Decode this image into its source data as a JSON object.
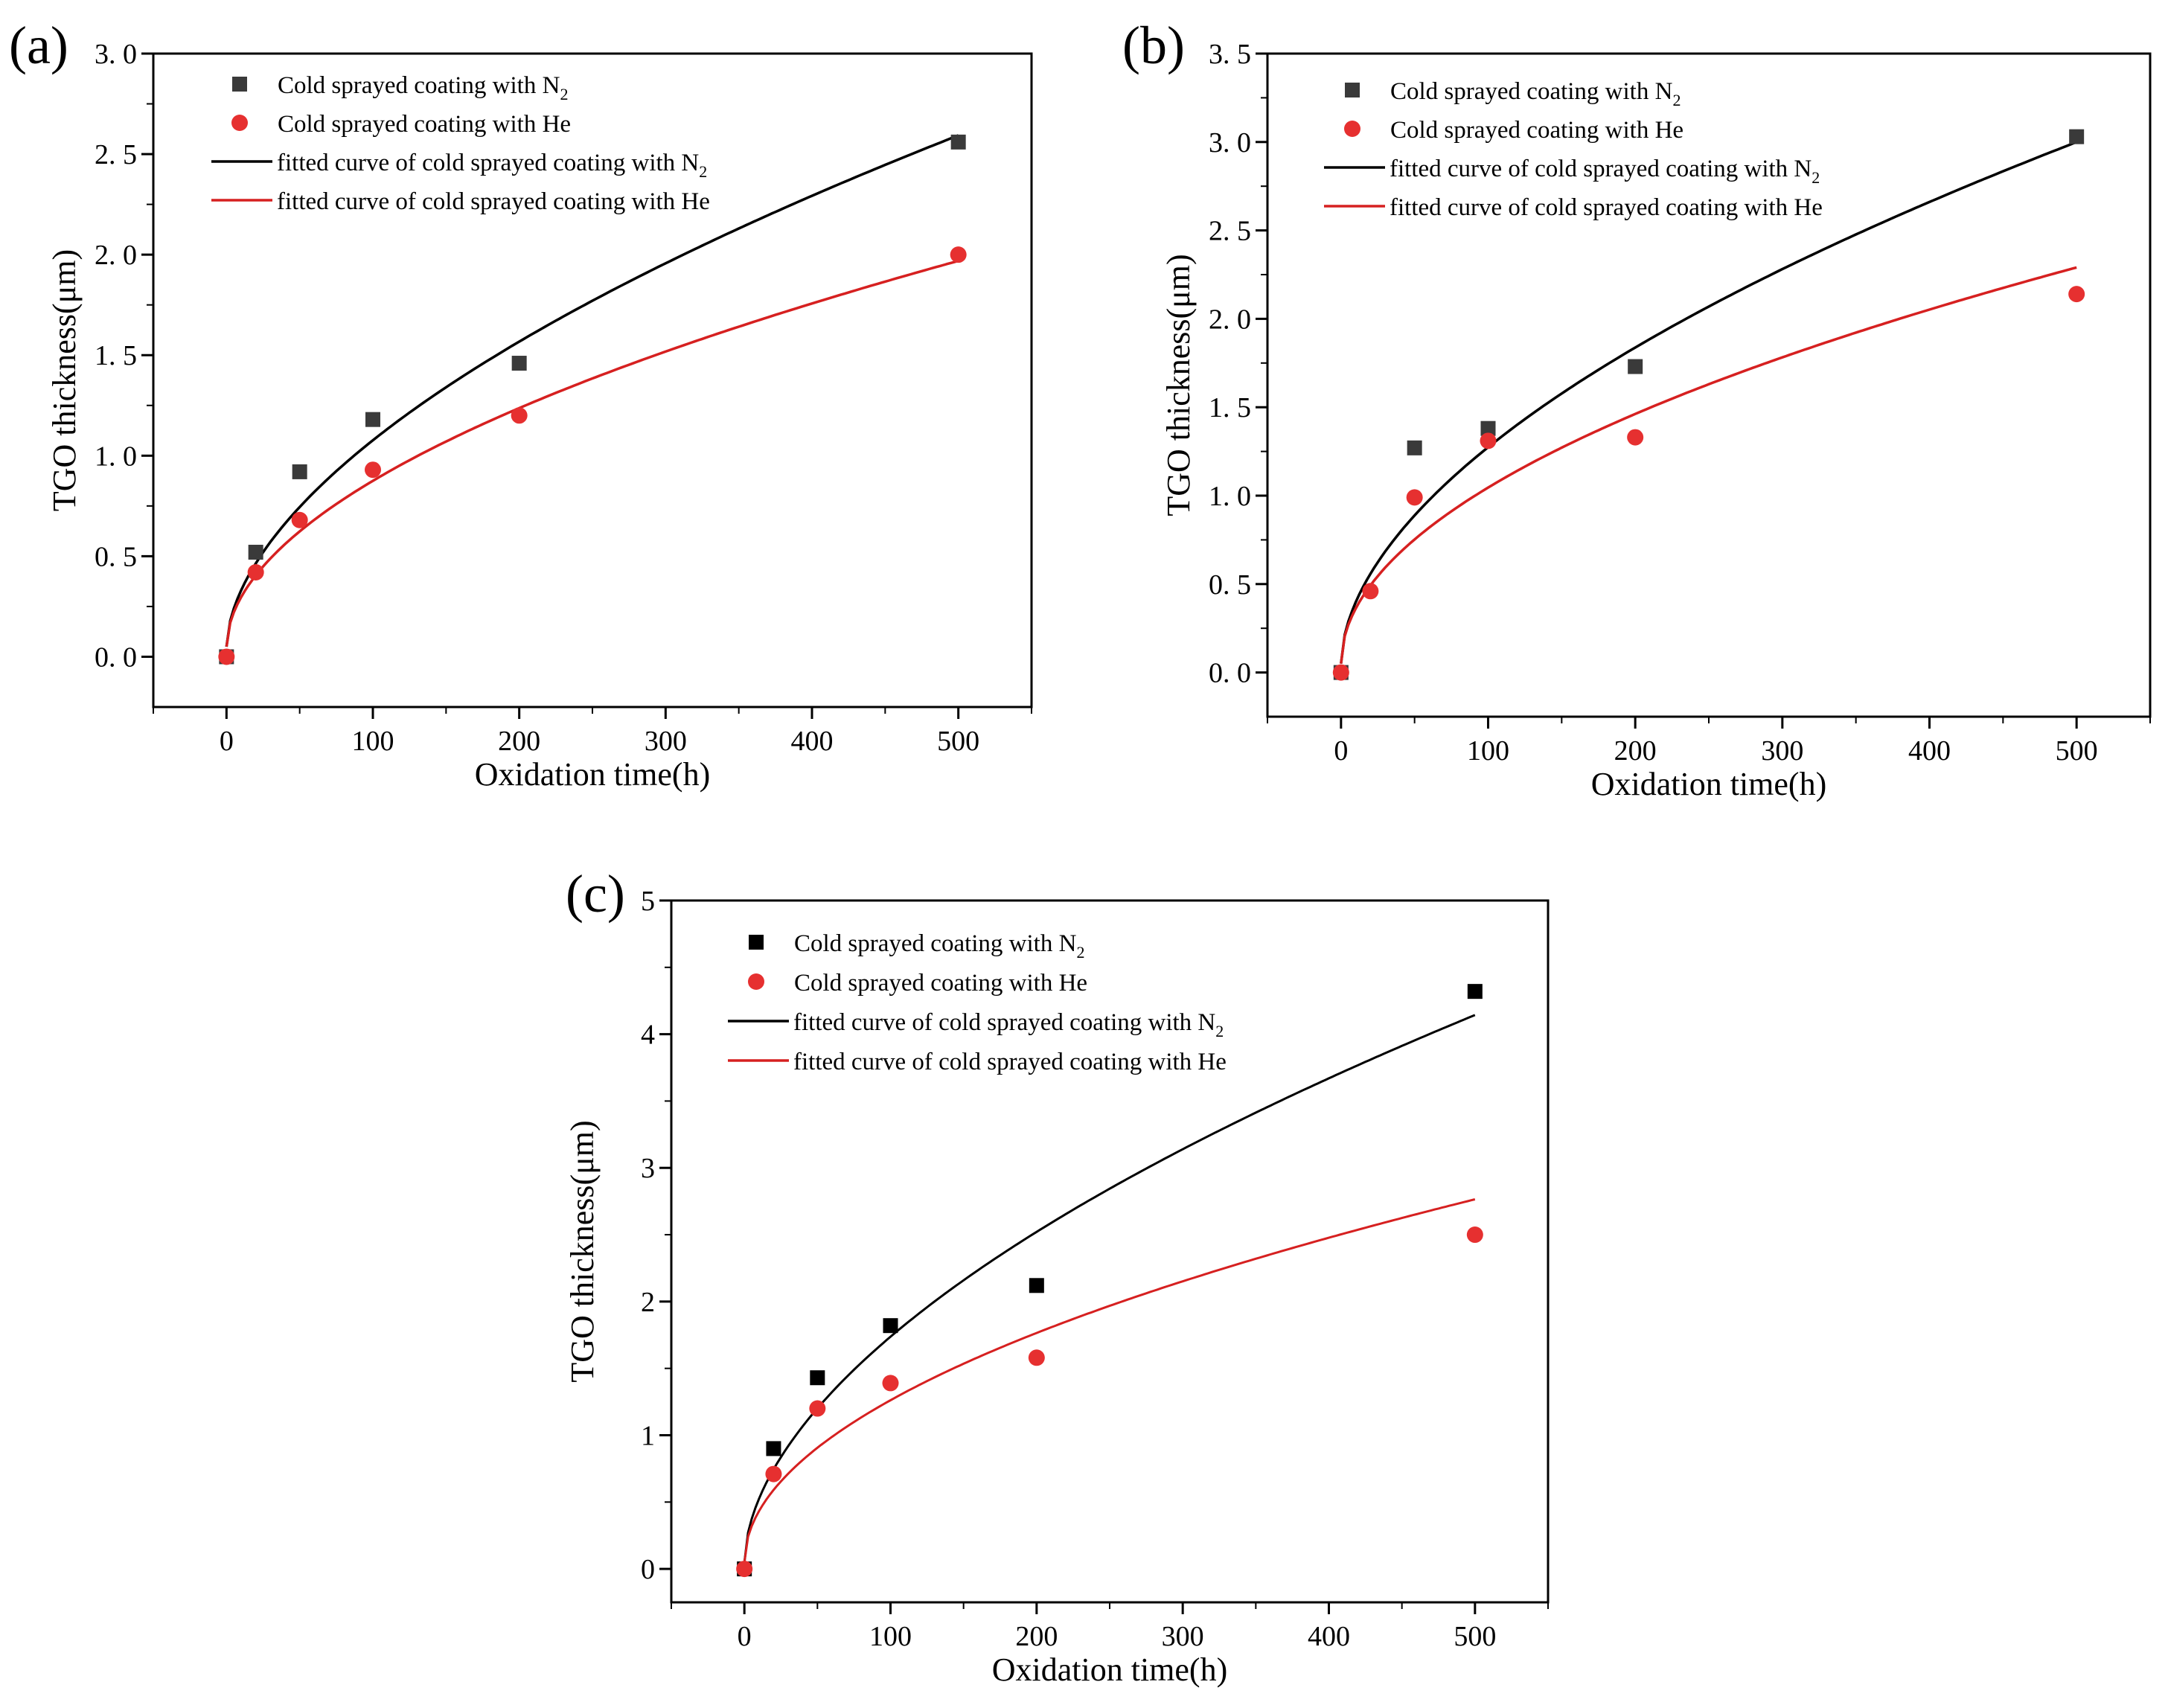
{
  "figure": {
    "panels": [
      "(a)",
      "(b)",
      "(c)"
    ]
  },
  "colors": {
    "n2_marker_a": "#3a3a3a",
    "n2_marker_c": "#000000",
    "he_marker": "#e63030",
    "n2_curve": "#000000",
    "he_curve": "#d62020"
  },
  "chart_data": [
    {
      "panel": "(a)",
      "type": "scatter",
      "xlabel": "Oxidation time(h)",
      "ylabel": "TGO thickness(μm)",
      "xlim": [
        -50,
        550
      ],
      "ylim": [
        -0.25,
        3.0
      ],
      "xticks": [
        0,
        100,
        200,
        300,
        400,
        500
      ],
      "xtick_labels": [
        "0",
        "100",
        "200",
        "300",
        "400",
        "500"
      ],
      "yticks": [
        0.0,
        0.5,
        1.0,
        1.5,
        2.0,
        2.5,
        3.0
      ],
      "ytick_labels": [
        "0. 0",
        "0. 5",
        "1. 0",
        "1. 5",
        "2. 0",
        "2. 5",
        "3. 0"
      ],
      "legend": {
        "position": "top-left",
        "entries": [
          {
            "text": "Cold sprayed coating with N",
            "sub": "2",
            "kind": "square"
          },
          {
            "text": "Cold sprayed coating with He",
            "sub": "",
            "kind": "circle"
          },
          {
            "text": "fitted curve of cold sprayed coating with N",
            "sub": "2",
            "kind": "line-black"
          },
          {
            "text": "fitted curve of cold sprayed coating with He",
            "sub": "",
            "kind": "line-red"
          }
        ]
      },
      "series": [
        {
          "name": "Cold sprayed coating with N2",
          "marker": "square",
          "x": [
            0,
            20,
            50,
            100,
            200,
            500
          ],
          "y": [
            0.0,
            0.52,
            0.92,
            1.18,
            1.46,
            2.56
          ]
        },
        {
          "name": "Cold sprayed coating with He",
          "marker": "circle",
          "x": [
            0,
            20,
            50,
            100,
            200,
            500
          ],
          "y": [
            0.0,
            0.42,
            0.68,
            0.93,
            1.2,
            2.0
          ]
        }
      ],
      "fits": [
        {
          "name": "fitted curve of cold sprayed coating with N2",
          "a": 0.05,
          "b": 0.0766,
          "n": 0.5636
        },
        {
          "name": "fitted curve of cold sprayed coating with He",
          "a": 0.05,
          "b": 0.0737,
          "n": 0.5245
        }
      ]
    },
    {
      "panel": "(b)",
      "type": "scatter",
      "xlabel": "Oxidation time(h)",
      "ylabel": "TGO thickness(μm)",
      "xlim": [
        -50,
        550
      ],
      "ylim": [
        -0.25,
        3.5
      ],
      "xticks": [
        0,
        100,
        200,
        300,
        400,
        500
      ],
      "xtick_labels": [
        "0",
        "100",
        "200",
        "300",
        "400",
        "500"
      ],
      "yticks": [
        0.0,
        0.5,
        1.0,
        1.5,
        2.0,
        2.5,
        3.0,
        3.5
      ],
      "ytick_labels": [
        "0. 0",
        "0. 5",
        "1. 0",
        "1. 5",
        "2. 0",
        "2. 5",
        "3. 0",
        "3. 5"
      ],
      "legend": {
        "position": "top-left",
        "entries": [
          {
            "text": "Cold sprayed coating with N",
            "sub": "2",
            "kind": "square"
          },
          {
            "text": "Cold sprayed coating with He",
            "sub": "",
            "kind": "circle"
          },
          {
            "text": "fitted curve of cold sprayed coating with N",
            "sub": "2",
            "kind": "line-black"
          },
          {
            "text": "fitted curve of cold sprayed coating with He",
            "sub": "",
            "kind": "line-red"
          }
        ]
      },
      "series": [
        {
          "name": "Cold sprayed coating with N2",
          "marker": "square",
          "x": [
            0,
            50,
            100,
            200,
            500
          ],
          "y": [
            0.0,
            1.27,
            1.38,
            1.73,
            3.03
          ]
        },
        {
          "name": "Cold sprayed coating with He",
          "marker": "circle",
          "x": [
            0,
            20,
            50,
            100,
            200,
            500
          ],
          "y": [
            0.0,
            0.46,
            0.99,
            1.31,
            1.33,
            2.14
          ]
        }
      ],
      "fits": [
        {
          "name": "fitted curve of cold sprayed coating with N2",
          "a": 0.05,
          "b": 0.0988,
          "n": 0.5465
        },
        {
          "name": "fitted curve of cold sprayed coating with He",
          "a": 0.05,
          "b": 0.0978,
          "n": 0.5039
        }
      ]
    },
    {
      "panel": "(c)",
      "type": "scatter",
      "xlabel": "Oxidation time(h)",
      "ylabel": "TGO thickness(μm)",
      "xlim": [
        -50,
        550
      ],
      "ylim": [
        -0.25,
        5.0
      ],
      "xticks": [
        0,
        100,
        200,
        300,
        400,
        500
      ],
      "xtick_labels": [
        "0",
        "100",
        "200",
        "300",
        "400",
        "500"
      ],
      "yticks": [
        0,
        1,
        2,
        3,
        4,
        5
      ],
      "ytick_labels": [
        "0",
        "1",
        "2",
        "3",
        "4",
        "5"
      ],
      "legend": {
        "position": "top-left",
        "entries": [
          {
            "text": "Cold sprayed coating with N",
            "sub": "2",
            "kind": "square"
          },
          {
            "text": "Cold sprayed coating with He",
            "sub": "",
            "kind": "circle"
          },
          {
            "text": "fitted curve of cold sprayed coating with N",
            "sub": "2",
            "kind": "line-black"
          },
          {
            "text": "fitted curve of cold sprayed coating with He",
            "sub": "",
            "kind": "line-red"
          }
        ]
      },
      "series": [
        {
          "name": "Cold sprayed coating with N2",
          "marker": "square",
          "x": [
            0,
            20,
            50,
            100,
            200,
            500
          ],
          "y": [
            0.0,
            0.9,
            1.43,
            1.82,
            2.12,
            4.32
          ]
        },
        {
          "name": "Cold sprayed coating with He",
          "marker": "circle",
          "x": [
            0,
            20,
            50,
            100,
            200,
            500
          ],
          "y": [
            0.0,
            0.71,
            1.2,
            1.39,
            1.58,
            2.5
          ]
        }
      ],
      "fits": [
        {
          "name": "fitted curve of cold sprayed coating with N2",
          "a": 0.05,
          "b": 0.1335,
          "n": 0.5508
        },
        {
          "name": "fitted curve of cold sprayed coating with He",
          "a": 0.05,
          "b": 0.1205,
          "n": 0.5012
        }
      ]
    }
  ]
}
